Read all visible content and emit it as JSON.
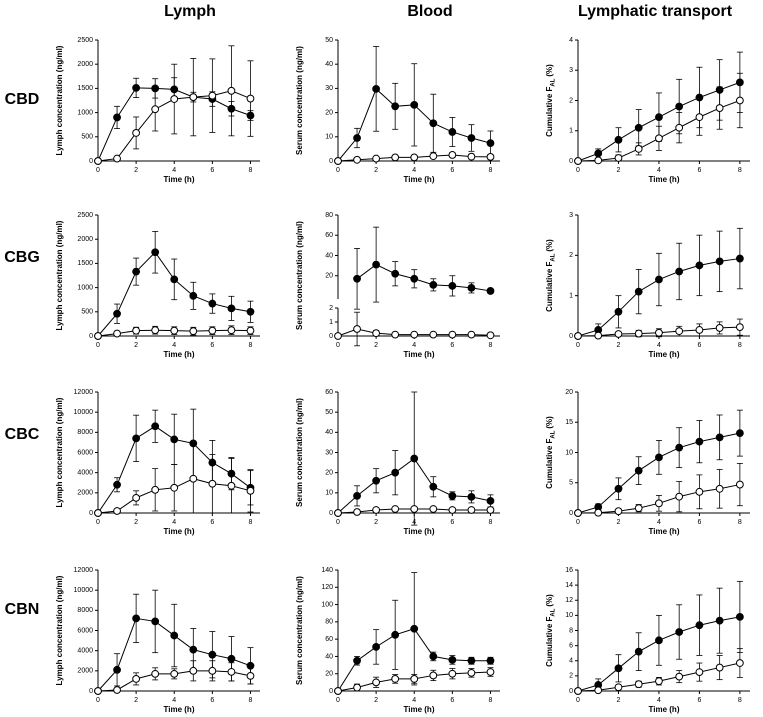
{
  "columns": [
    "Lymph",
    "Blood",
    "Lymphatic transport"
  ],
  "rows": [
    "CBD",
    "CBG",
    "CBC",
    "CBN"
  ],
  "chart_data": [
    {
      "type": "line",
      "ylabel": "Lymph concentration (ng/ml)",
      "xlabel": "Time (h)",
      "x": [
        0,
        1,
        2,
        3,
        4,
        5,
        6,
        7,
        8
      ],
      "xlim": [
        0,
        8.5
      ],
      "xticks": [
        0,
        2,
        4,
        6,
        8
      ],
      "ylim": [
        0,
        2500
      ],
      "yticks": [
        0,
        500,
        1000,
        1500,
        2000,
        2500
      ],
      "series": [
        {
          "color": "#000000",
          "marker_fill": "#000000",
          "values": [
            0,
            900,
            1510,
            1500,
            1480,
            1320,
            1280,
            1080,
            940
          ],
          "errors": [
            0,
            230,
            200,
            200,
            240,
            100,
            150,
            150,
            100
          ]
        },
        {
          "color": "#000000",
          "marker_fill": "#ffffff",
          "values": [
            0,
            50,
            580,
            1070,
            1280,
            1320,
            1350,
            1450,
            1290
          ],
          "errors": [
            0,
            30,
            330,
            450,
            720,
            800,
            760,
            930,
            780
          ]
        }
      ]
    },
    {
      "type": "line",
      "ylabel": "Serum concentration (ng/ml)",
      "xlabel": "Time (h)",
      "x": [
        0,
        1,
        2,
        3,
        4,
        5,
        6,
        7,
        8
      ],
      "xlim": [
        0,
        8.5
      ],
      "xticks": [
        0,
        2,
        4,
        6,
        8
      ],
      "ylim": [
        0,
        50
      ],
      "yticks": [
        0,
        10,
        20,
        30,
        40,
        50
      ],
      "series": [
        {
          "color": "#000000",
          "marker_fill": "#000000",
          "values": [
            0,
            9.5,
            29.8,
            22.6,
            23.2,
            15.6,
            12,
            9.5,
            7.4
          ],
          "errors": [
            0,
            4,
            17.5,
            9.5,
            17,
            12,
            6,
            5.5,
            5
          ]
        },
        {
          "color": "#000000",
          "marker_fill": "#ffffff",
          "values": [
            0,
            0.5,
            1,
            1.5,
            1.5,
            2,
            2.5,
            1.8,
            1.7
          ],
          "errors": [
            0,
            0.5,
            0.5,
            0.5,
            0.5,
            0.5,
            1,
            1,
            1
          ]
        }
      ]
    },
    {
      "type": "line",
      "ylabel": {
        "text": "Cumulative F",
        "sub": "AL",
        "tail": "(%)"
      },
      "xlabel": "Time (h)",
      "x": [
        0,
        1,
        2,
        3,
        4,
        5,
        6,
        7,
        8
      ],
      "xlim": [
        0,
        8.5
      ],
      "xticks": [
        0,
        2,
        4,
        6,
        8
      ],
      "ylim": [
        0,
        4
      ],
      "yticks": [
        0,
        1,
        2,
        3,
        4
      ],
      "series": [
        {
          "color": "#000000",
          "marker_fill": "#000000",
          "values": [
            0,
            0.25,
            0.7,
            1.1,
            1.45,
            1.8,
            2.1,
            2.35,
            2.6
          ],
          "errors": [
            0,
            0.15,
            0.4,
            0.6,
            0.8,
            0.9,
            1,
            1,
            1
          ]
        },
        {
          "color": "#000000",
          "marker_fill": "#ffffff",
          "values": [
            0,
            0.02,
            0.1,
            0.4,
            0.75,
            1.1,
            1.45,
            1.75,
            2.0
          ],
          "errors": [
            0,
            0.02,
            0.1,
            0.2,
            0.4,
            0.5,
            0.6,
            0.7,
            0.9
          ]
        }
      ]
    },
    {
      "type": "line",
      "ylabel": "Lymph concentration (ng/ml)",
      "xlabel": "Time (h)",
      "x": [
        0,
        1,
        2,
        3,
        4,
        5,
        6,
        7,
        8
      ],
      "xlim": [
        0,
        8.5
      ],
      "xticks": [
        0,
        2,
        4,
        6,
        8
      ],
      "ylim": [
        0,
        2500
      ],
      "yticks": [
        0,
        500,
        1000,
        1500,
        2000,
        2500
      ],
      "series": [
        {
          "color": "#000000",
          "marker_fill": "#000000",
          "values": [
            0,
            460,
            1330,
            1730,
            1170,
            830,
            670,
            570,
            500
          ],
          "errors": [
            0,
            200,
            280,
            430,
            420,
            280,
            200,
            250,
            220
          ]
        },
        {
          "color": "#000000",
          "marker_fill": "#ffffff",
          "values": [
            0,
            50,
            110,
            120,
            110,
            100,
            110,
            120,
            110
          ],
          "errors": [
            0,
            50,
            70,
            80,
            80,
            80,
            80,
            90,
            80
          ]
        }
      ]
    },
    {
      "type": "line",
      "ylabel": "Serum concentration (ng/ml)",
      "xlabel": "Time (h)",
      "x": [
        0,
        1,
        2,
        3,
        4,
        5,
        6,
        7,
        8
      ],
      "xlim": [
        0,
        8.5
      ],
      "xticks": [
        0,
        2,
        4,
        6,
        8
      ],
      "ylim": [
        0,
        2
      ],
      "yticks": [
        0,
        1,
        2
      ],
      "y2lim": [
        0,
        80
      ],
      "y2ticks": [
        20,
        40,
        60,
        80
      ],
      "series": [
        {
          "color": "#000000",
          "marker_fill": "#000000",
          "axis": "y2",
          "values": [
            null,
            17,
            31,
            22,
            17,
            11,
            10,
            8,
            5
          ],
          "errors": [
            null,
            30,
            37,
            12,
            9,
            6,
            10,
            5,
            2
          ]
        },
        {
          "color": "#000000",
          "marker_fill": "#ffffff",
          "values": [
            0,
            0.5,
            0.2,
            0.1,
            0.1,
            0.1,
            0.1,
            0.1,
            0.05
          ],
          "errors": [
            0,
            1.2,
            0.2,
            0.1,
            0.1,
            0.1,
            0.1,
            0.1,
            0.05
          ]
        }
      ]
    },
    {
      "type": "line",
      "ylabel": {
        "text": "Cumulative F",
        "sub": "AL",
        "tail": "(%)"
      },
      "xlabel": "Time (h)",
      "x": [
        0,
        1,
        2,
        3,
        4,
        5,
        6,
        7,
        8
      ],
      "xlim": [
        0,
        8.5
      ],
      "xticks": [
        0,
        2,
        4,
        6,
        8
      ],
      "ylim": [
        0,
        3
      ],
      "yticks": [
        0,
        1,
        2,
        3
      ],
      "series": [
        {
          "color": "#000000",
          "marker_fill": "#000000",
          "values": [
            0,
            0.15,
            0.6,
            1.1,
            1.4,
            1.6,
            1.75,
            1.85,
            1.92
          ],
          "errors": [
            0,
            0.15,
            0.4,
            0.55,
            0.65,
            0.7,
            0.75,
            0.75,
            0.75
          ]
        },
        {
          "color": "#000000",
          "marker_fill": "#ffffff",
          "values": [
            0,
            0.01,
            0.05,
            0.06,
            0.08,
            0.12,
            0.15,
            0.2,
            0.22
          ],
          "errors": [
            0,
            0.02,
            0.05,
            0.08,
            0.1,
            0.12,
            0.15,
            0.15,
            0.2
          ]
        }
      ]
    },
    {
      "type": "line",
      "ylabel": "Lymph concentration (ng/ml)",
      "xlabel": "Time (h)",
      "x": [
        0,
        1,
        2,
        3,
        4,
        5,
        6,
        7,
        8
      ],
      "xlim": [
        0,
        8.5
      ],
      "xticks": [
        0,
        2,
        4,
        6,
        8
      ],
      "ylim": [
        0,
        12000
      ],
      "yticks": [
        0,
        2000,
        4000,
        6000,
        8000,
        10000,
        12000
      ],
      "series": [
        {
          "color": "#000000",
          "marker_fill": "#000000",
          "values": [
            0,
            2800,
            7400,
            8600,
            7300,
            6900,
            5000,
            3900,
            2500
          ],
          "errors": [
            0,
            700,
            2300,
            1600,
            2500,
            3400,
            2200,
            1600,
            1700
          ]
        },
        {
          "color": "#000000",
          "marker_fill": "#ffffff",
          "values": [
            0,
            200,
            1500,
            2300,
            2500,
            3400,
            2900,
            2700,
            2200
          ],
          "errors": [
            0,
            100,
            700,
            2100,
            2300,
            3400,
            2900,
            2700,
            2100
          ]
        }
      ]
    },
    {
      "type": "line",
      "ylabel": "Serum concentration (ng/ml)",
      "xlabel": "Time (h)",
      "x": [
        0,
        1,
        2,
        3,
        4,
        5,
        6,
        7,
        8
      ],
      "xlim": [
        0,
        8.5
      ],
      "xticks": [
        0,
        2,
        4,
        6,
        8
      ],
      "ylim": [
        0,
        60
      ],
      "yticks": [
        0,
        10,
        20,
        30,
        40,
        50,
        60
      ],
      "series": [
        {
          "color": "#000000",
          "marker_fill": "#000000",
          "values": [
            0,
            8.5,
            16,
            20,
            27,
            13,
            8.5,
            8,
            6
          ],
          "errors": [
            0,
            5,
            6,
            11,
            33,
            5,
            2,
            3,
            3
          ]
        },
        {
          "color": "#000000",
          "marker_fill": "#ffffff",
          "values": [
            0,
            0.5,
            1.5,
            2,
            2,
            2,
            1.5,
            1.5,
            1.5
          ],
          "errors": [
            0,
            0.5,
            0.5,
            0.5,
            0.5,
            0.5,
            0.5,
            0.5,
            0.5
          ]
        }
      ]
    },
    {
      "type": "line",
      "ylabel": {
        "text": "Cumulative F",
        "sub": "AL",
        "tail": "(%)"
      },
      "xlabel": "Time (h)",
      "x": [
        0,
        1,
        2,
        3,
        4,
        5,
        6,
        7,
        8
      ],
      "xlim": [
        0,
        8.5
      ],
      "xticks": [
        0,
        2,
        4,
        6,
        8
      ],
      "ylim": [
        0,
        20
      ],
      "yticks": [
        0,
        5,
        10,
        15,
        20
      ],
      "series": [
        {
          "color": "#000000",
          "marker_fill": "#000000",
          "values": [
            0,
            1,
            4,
            7,
            9.2,
            10.8,
            11.8,
            12.5,
            13.2
          ],
          "errors": [
            0,
            0.5,
            1.8,
            2.3,
            2.8,
            3.3,
            3.5,
            3.7,
            3.8
          ]
        },
        {
          "color": "#000000",
          "marker_fill": "#ffffff",
          "values": [
            0,
            0.05,
            0.3,
            0.8,
            1.6,
            2.7,
            3.5,
            4,
            4.7
          ],
          "errors": [
            0,
            0.05,
            0.3,
            0.6,
            1.3,
            2.5,
            2.8,
            3.2,
            3.5
          ]
        }
      ]
    },
    {
      "type": "line",
      "ylabel": "Lymph concentration (ng/ml)",
      "xlabel": "Time (h)",
      "x": [
        0,
        1,
        2,
        3,
        4,
        5,
        6,
        7,
        8
      ],
      "xlim": [
        0,
        8.5
      ],
      "xticks": [
        0,
        2,
        4,
        6,
        8
      ],
      "ylim": [
        0,
        12000
      ],
      "yticks": [
        0,
        2000,
        4000,
        6000,
        8000,
        10000,
        12000
      ],
      "series": [
        {
          "color": "#000000",
          "marker_fill": "#000000",
          "values": [
            0,
            2100,
            7200,
            6900,
            5500,
            4100,
            3600,
            3200,
            2500
          ],
          "errors": [
            0,
            1600,
            2400,
            3100,
            3100,
            2100,
            2300,
            2200,
            1800
          ]
        },
        {
          "color": "#000000",
          "marker_fill": "#ffffff",
          "values": [
            0,
            100,
            1200,
            1700,
            1700,
            2000,
            2000,
            1900,
            1500
          ],
          "errors": [
            0,
            100,
            600,
            600,
            500,
            1000,
            1000,
            900,
            800
          ]
        }
      ]
    },
    {
      "type": "line",
      "ylabel": "Serum concentration (ng/ml)",
      "xlabel": "Time (h)",
      "x": [
        0,
        1,
        2,
        3,
        4,
        5,
        6,
        7,
        8
      ],
      "xlim": [
        0,
        8.5
      ],
      "xticks": [
        0,
        2,
        4,
        6,
        8
      ],
      "ylim": [
        0,
        140
      ],
      "yticks": [
        0,
        20,
        40,
        60,
        80,
        100,
        120,
        140
      ],
      "series": [
        {
          "color": "#000000",
          "marker_fill": "#000000",
          "values": [
            0,
            35,
            51,
            65,
            72,
            40,
            36,
            35,
            35
          ],
          "errors": [
            0,
            5,
            20,
            40,
            65,
            5,
            5,
            4,
            4
          ]
        },
        {
          "color": "#000000",
          "marker_fill": "#ffffff",
          "values": [
            0,
            4,
            10,
            14,
            14,
            18,
            20,
            21,
            22
          ],
          "errors": [
            0,
            4,
            6,
            5,
            5,
            6,
            6,
            5,
            5
          ]
        }
      ]
    },
    {
      "type": "line",
      "ylabel": {
        "text": "Cumulative F",
        "sub": "AL",
        "tail": "(%)"
      },
      "xlabel": "Time (h)",
      "x": [
        0,
        1,
        2,
        3,
        4,
        5,
        6,
        7,
        8
      ],
      "xlim": [
        0,
        8.5
      ],
      "xticks": [
        0,
        2,
        4,
        6,
        8
      ],
      "ylim": [
        0,
        16
      ],
      "yticks": [
        0,
        2,
        4,
        6,
        8,
        10,
        12,
        14,
        16
      ],
      "series": [
        {
          "color": "#000000",
          "marker_fill": "#000000",
          "values": [
            0,
            0.8,
            3,
            5.2,
            6.7,
            7.8,
            8.7,
            9.3,
            9.8
          ],
          "errors": [
            0,
            0.8,
            1.8,
            2.5,
            3.3,
            3.6,
            4,
            4.3,
            4.7
          ]
        },
        {
          "color": "#000000",
          "marker_fill": "#ffffff",
          "values": [
            0,
            0.1,
            0.5,
            0.9,
            1.3,
            1.9,
            2.5,
            3.1,
            3.7
          ],
          "errors": [
            0,
            0.1,
            0.3,
            0.4,
            0.5,
            0.8,
            1.2,
            1.6,
            1.9
          ]
        }
      ]
    }
  ]
}
